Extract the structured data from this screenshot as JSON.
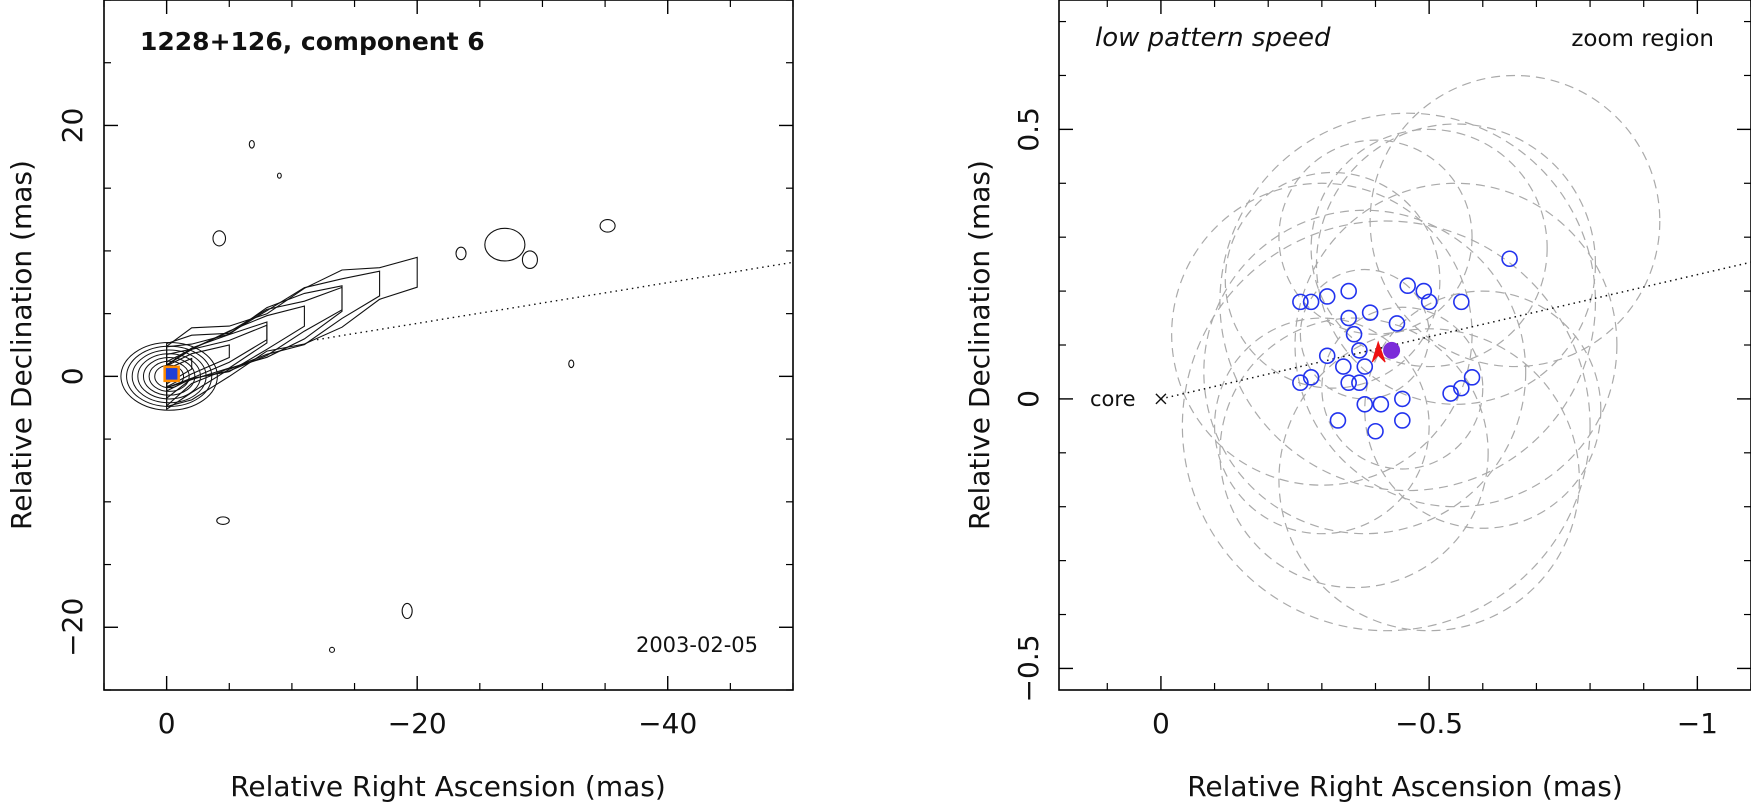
{
  "chart_data": [
    {
      "type": "contour",
      "title": "1228+126, component 6",
      "date": "2003-02-05",
      "xlabel": "Relative Right Ascension (mas)",
      "ylabel": "Relative Declination (mas)",
      "xlim": [
        5,
        -50
      ],
      "ylim": [
        -25,
        30
      ],
      "xticks": [
        0,
        -20,
        -40
      ],
      "yticks": [
        -20,
        0,
        20
      ],
      "xtick_labels": [
        "0",
        "−20",
        "−40"
      ],
      "ytick_labels": [
        "−20",
        "0",
        "20"
      ],
      "jet_axis": {
        "angle_deg": 12.5,
        "x_from": -12,
        "x_to": -50
      },
      "marker": {
        "x": -0.4,
        "y": 0.2,
        "fill": "#1f3fd6",
        "edge": "#ff8c00"
      },
      "jet_ridge": [
        [
          0,
          0
        ],
        [
          -2,
          1
        ],
        [
          -5,
          2
        ],
        [
          -8,
          3.5
        ],
        [
          -11,
          4.8
        ],
        [
          -14,
          6.2
        ],
        [
          -17,
          7.4
        ],
        [
          -20,
          8.3
        ]
      ],
      "islands": [
        {
          "x": -27,
          "y": 10.5,
          "rx": 1.6,
          "ry": 1.3
        },
        {
          "x": -29,
          "y": 9.3,
          "rx": 0.6,
          "ry": 0.7
        },
        {
          "x": -23.5,
          "y": 9.8,
          "rx": 0.4,
          "ry": 0.5
        },
        {
          "x": -35.2,
          "y": 12,
          "rx": 0.6,
          "ry": 0.5
        },
        {
          "x": -4.2,
          "y": 11,
          "rx": 0.5,
          "ry": 0.6
        },
        {
          "x": -19.2,
          "y": -18.7,
          "rx": 0.4,
          "ry": 0.6
        },
        {
          "x": -32.3,
          "y": 1,
          "rx": 0.2,
          "ry": 0.3
        },
        {
          "x": -6.8,
          "y": 18.5,
          "rx": 0.2,
          "ry": 0.3
        },
        {
          "x": -9,
          "y": 16,
          "rx": 0.15,
          "ry": 0.2
        },
        {
          "x": -4.5,
          "y": -11.5,
          "rx": 0.5,
          "ry": 0.3
        },
        {
          "x": -13.2,
          "y": -21.8,
          "rx": 0.2,
          "ry": 0.2
        }
      ]
    },
    {
      "type": "scatter",
      "title": "low pattern speed",
      "subtitle": "zoom region",
      "core_label": "core",
      "xlabel": "Relative Right Ascension (mas)",
      "ylabel": "Relative Declination (mas)",
      "xlim": [
        0.19,
        -1.1
      ],
      "ylim": [
        -0.54,
        0.74
      ],
      "xticks": [
        0,
        -0.5,
        -1
      ],
      "yticks": [
        -0.5,
        0,
        0.5
      ],
      "xtick_labels": [
        "0",
        "−0.5",
        "−1"
      ],
      "ytick_labels": [
        "−0.5",
        "0",
        "0.5"
      ],
      "jet_axis": {
        "angle_deg": 12.5
      },
      "points": [
        [
          -0.65,
          0.26
        ],
        [
          -0.26,
          0.18
        ],
        [
          -0.28,
          0.18
        ],
        [
          -0.31,
          0.19
        ],
        [
          -0.35,
          0.2
        ],
        [
          -0.46,
          0.21
        ],
        [
          -0.49,
          0.2
        ],
        [
          -0.5,
          0.18
        ],
        [
          -0.56,
          0.18
        ],
        [
          -0.35,
          0.15
        ],
        [
          -0.39,
          0.16
        ],
        [
          -0.44,
          0.14
        ],
        [
          -0.36,
          0.12
        ],
        [
          -0.37,
          0.09
        ],
        [
          -0.31,
          0.08
        ],
        [
          -0.34,
          0.06
        ],
        [
          -0.38,
          0.06
        ],
        [
          -0.28,
          0.04
        ],
        [
          -0.26,
          0.03
        ],
        [
          -0.35,
          0.03
        ],
        [
          -0.37,
          0.03
        ],
        [
          -0.58,
          0.04
        ],
        [
          -0.56,
          0.02
        ],
        [
          -0.54,
          0.01
        ],
        [
          -0.38,
          -0.01
        ],
        [
          -0.41,
          -0.01
        ],
        [
          -0.45,
          0.0
        ],
        [
          -0.33,
          -0.04
        ],
        [
          -0.45,
          -0.04
        ],
        [
          -0.4,
          -0.06
        ]
      ],
      "mean_point": [
        -0.43,
        0.09
      ],
      "red_marker": [
        -0.405,
        0.085
      ],
      "gray_circles": [
        [
          -0.66,
          0.33,
          0.27
        ],
        [
          -0.5,
          0.28,
          0.22
        ],
        [
          -0.38,
          0.05,
          0.3
        ],
        [
          -0.42,
          -0.05,
          0.38
        ],
        [
          -0.55,
          0.1,
          0.3
        ],
        [
          -0.3,
          0.12,
          0.28
        ],
        [
          -0.46,
          0.18,
          0.35
        ],
        [
          -0.36,
          -0.1,
          0.25
        ],
        [
          -0.6,
          -0.02,
          0.22
        ],
        [
          -0.32,
          0.22,
          0.2
        ],
        [
          -0.5,
          -0.15,
          0.28
        ],
        [
          -0.4,
          0.3,
          0.18
        ],
        [
          -0.45,
          0.02,
          0.15
        ],
        [
          -0.38,
          0.12,
          0.12
        ],
        [
          -0.55,
          0.25,
          0.26
        ],
        [
          -0.3,
          -0.05,
          0.2
        ]
      ],
      "colors": {
        "points": "#2233ee",
        "mean": "#7b2bd9",
        "marker": "#ee1111",
        "circles": "#aaaaaa"
      }
    }
  ]
}
